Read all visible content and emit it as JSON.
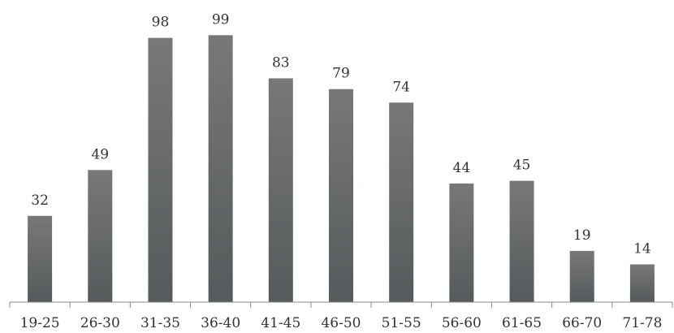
{
  "chart_data": {
    "type": "bar",
    "title": "",
    "xlabel": "",
    "ylabel": "",
    "categories": [
      "19-25",
      "26-30",
      "31-35",
      "36-40",
      "41-45",
      "46-50",
      "51-55",
      "56-60",
      "61-65",
      "66-70",
      "71-78"
    ],
    "values": [
      32,
      49,
      98,
      99,
      83,
      79,
      74,
      44,
      45,
      19,
      14
    ],
    "ylim": [
      0,
      100
    ],
    "grid": false,
    "legend": "none",
    "data_labels": true,
    "colors": {
      "bar_top": "#777777",
      "bar_bottom": "#555a5c",
      "axis": "#888888",
      "text": "#333333"
    }
  }
}
